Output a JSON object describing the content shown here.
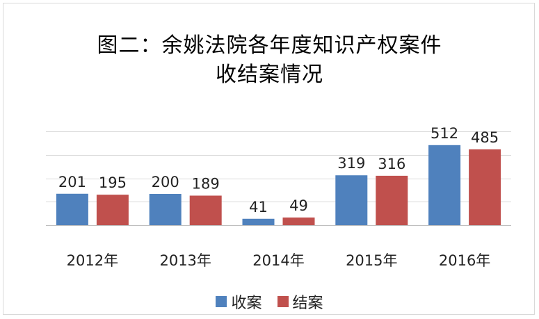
{
  "chart_data": {
    "type": "bar",
    "title_line1": "图二：余姚法院各年度知识产权案件",
    "title_line2": "收结案情况",
    "categories": [
      "2012年",
      "2013年",
      "2014年",
      "2015年",
      "2016年"
    ],
    "series": [
      {
        "name": "收案",
        "values": [
          201,
          200,
          41,
          319,
          512
        ],
        "color": "#4f81bd"
      },
      {
        "name": "结案",
        "values": [
          195,
          189,
          49,
          316,
          485
        ],
        "color": "#c0504d"
      }
    ],
    "ylim": [
      0,
      600
    ],
    "yticks": [
      0,
      150,
      300,
      450,
      600
    ],
    "grid": true,
    "legend_position": "bottom"
  }
}
